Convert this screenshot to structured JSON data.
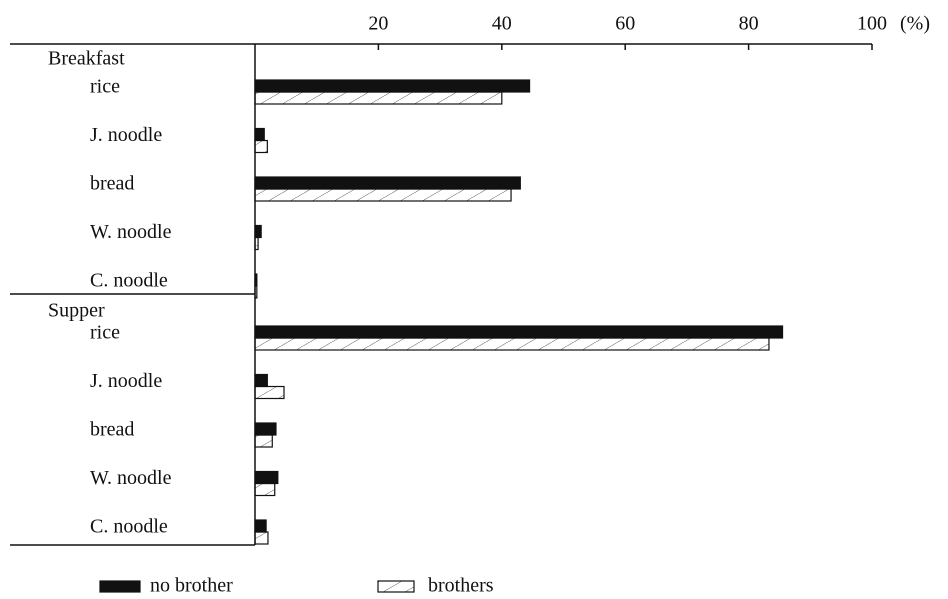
{
  "chart_data": {
    "type": "bar",
    "orientation": "horizontal",
    "groups": [
      "Breakfast",
      "Supper"
    ],
    "categories": [
      "rice",
      "J. noodle",
      "bread",
      "W. noodle",
      "C. noodle",
      "rice",
      "J. noodle",
      "bread",
      "W. noodle",
      "C. noodle"
    ],
    "series": [
      {
        "name": "no brother",
        "color": "#111111",
        "pattern": "solid",
        "values": [
          44.5,
          1.5,
          43,
          1,
          0.3,
          85.5,
          2,
          3.4,
          3.7,
          1.8
        ]
      },
      {
        "name": "brothers",
        "color": "#111111",
        "pattern": "hatch",
        "values": [
          40,
          2,
          41.5,
          0.5,
          0.3,
          83.3,
          4.7,
          2.8,
          3.2,
          2.1
        ]
      }
    ],
    "xlabel": "(%)",
    "xlim": [
      0,
      100
    ],
    "xticks": [
      20,
      40,
      60,
      80,
      100
    ]
  }
}
